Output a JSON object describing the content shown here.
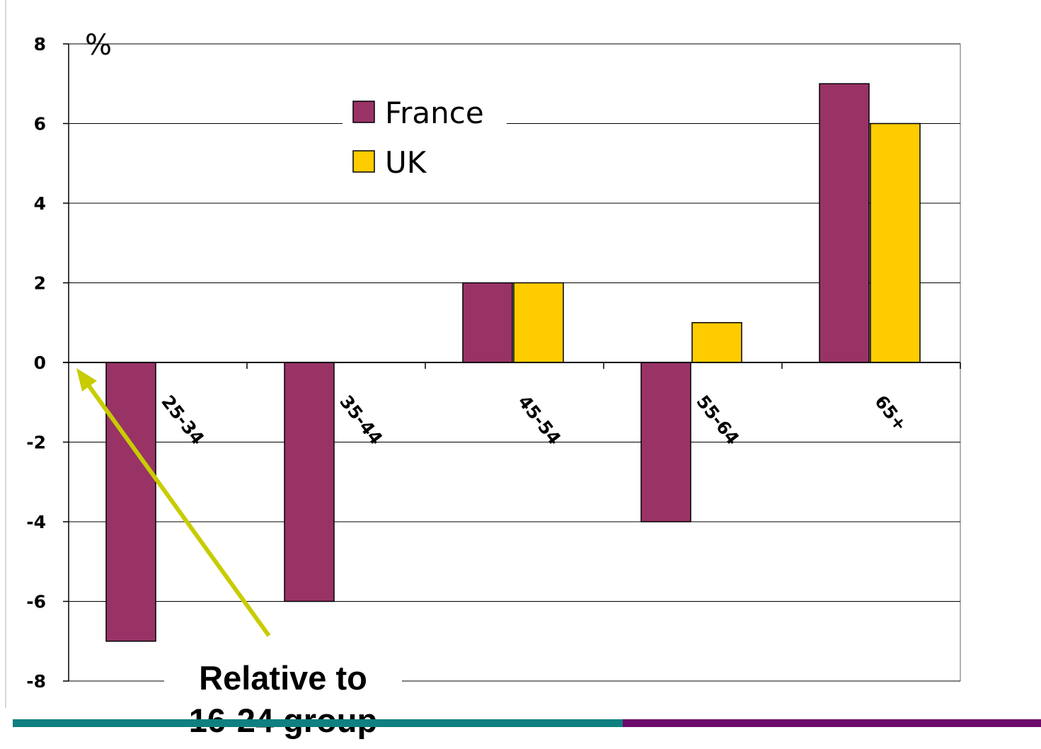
{
  "chart_data": {
    "type": "bar",
    "unit_label": "%",
    "categories": [
      "25-34",
      "35-44",
      "45-54",
      "55-64",
      "65+"
    ],
    "series": [
      {
        "name": "France",
        "color": "#993366",
        "values": [
          -7,
          -6,
          2,
          -4,
          7
        ]
      },
      {
        "name": "UK",
        "color": "#ffcc00",
        "values": [
          0,
          0,
          2,
          1,
          6
        ]
      }
    ],
    "ylim": [
      -8,
      8
    ],
    "yticks": [
      8,
      6,
      4,
      2,
      0,
      -2,
      -4,
      -6,
      -8
    ],
    "grid": true,
    "legend_position": "top-center",
    "annotation": {
      "lines": [
        "Relative to",
        "16-24 group"
      ],
      "arrow_color": "#c8cc00"
    }
  },
  "footer": {
    "colors": {
      "left": "#0f7f7f",
      "right": "#6b0a6b"
    }
  }
}
